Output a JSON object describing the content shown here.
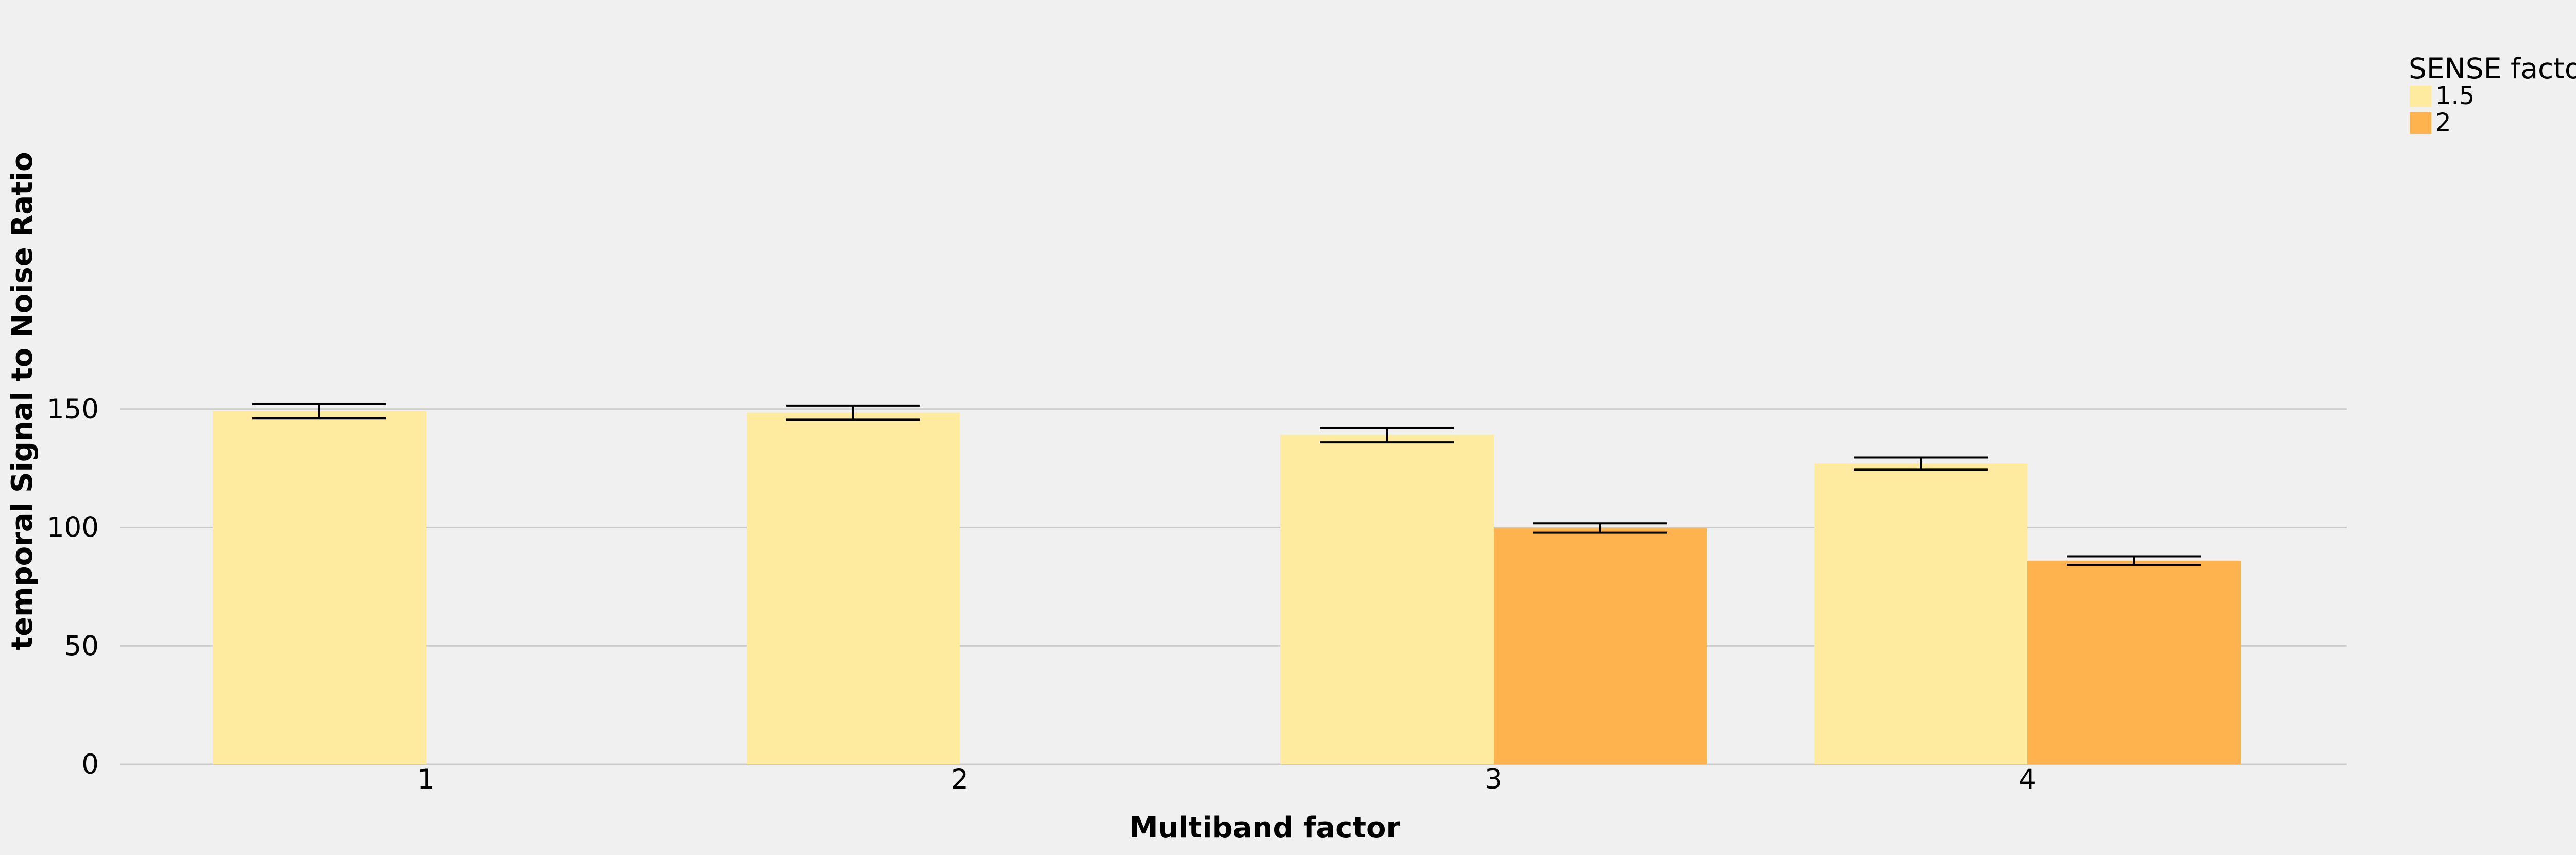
{
  "chart_data": {
    "type": "bar",
    "xlabel": "Multiband factor",
    "ylabel": "temporal Signal to Noise Ratio",
    "categories": [
      "1",
      "2",
      "3",
      "4"
    ],
    "ylim": [
      0,
      158
    ],
    "yticks": [
      0,
      50,
      100,
      150
    ],
    "grid": "horizontal",
    "legend": {
      "title": "SENSE factor",
      "placement": "right"
    },
    "series": [
      {
        "name": "1.5",
        "color": "#ffeba0",
        "values": [
          149.2,
          148.5,
          139.0,
          127.0
        ],
        "error": [
          3.0,
          3.0,
          3.0,
          2.6
        ]
      },
      {
        "name": "2",
        "color": "#ffb34e",
        "values": [
          null,
          null,
          99.8,
          86.0
        ],
        "error": [
          null,
          null,
          2.0,
          1.8
        ]
      }
    ]
  }
}
